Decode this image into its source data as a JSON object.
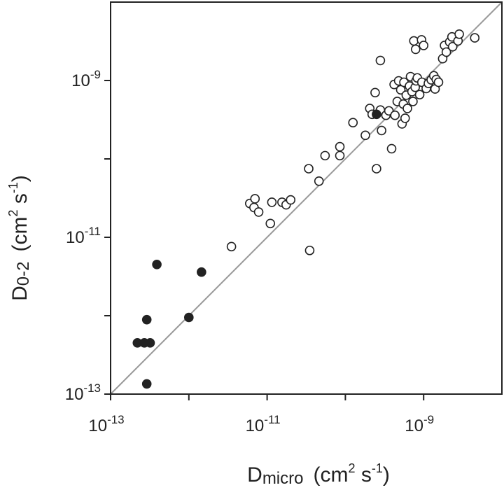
{
  "chart_data": {
    "type": "scatter",
    "title": "",
    "x_scale": "log",
    "y_scale": "log",
    "xlim": [
      1e-13,
      1e-08
    ],
    "ylim": [
      1e-13,
      1e-08
    ],
    "grid": false,
    "legend": "none",
    "reference_line": {
      "type": "1:1",
      "color": "#999999"
    },
    "x_ticks": [
      {
        "value": 1e-13,
        "base": "10",
        "exp": "-13"
      },
      {
        "value": 1e-11,
        "base": "10",
        "exp": "-11"
      },
      {
        "value": 1e-09,
        "base": "10",
        "exp": "-9"
      }
    ],
    "y_ticks": [
      {
        "value": 1e-13,
        "base": "10",
        "exp": "-13"
      },
      {
        "value": 1e-11,
        "base": "10",
        "exp": "-11"
      },
      {
        "value": 1e-09,
        "base": "10",
        "exp": "-9"
      }
    ],
    "x_minor_ticks": [
      1e-12,
      1e-10
    ],
    "y_minor_ticks": [
      1e-12,
      1e-10
    ],
    "xlabel": {
      "main": "D",
      "sub": "micro",
      "units_pre": "(cm",
      "units_exp1": "2",
      "units_mid": " s",
      "units_exp2": "-1",
      "units_post": ")"
    },
    "ylabel": {
      "main": "D",
      "sub": "0-2",
      "units_pre": "(cm",
      "units_exp1": "2",
      "units_mid": " s",
      "units_exp2": "-1",
      "units_post": ")"
    },
    "series": [
      {
        "style": "filled",
        "color": "#222222",
        "points": [
          [
            2.9e-13,
            8.9e-13
          ],
          [
            2.2e-13,
            4.5e-13
          ],
          [
            2.7e-13,
            4.5e-13
          ],
          [
            3.2e-13,
            4.5e-13
          ],
          [
            2.9e-13,
            1.35e-13
          ],
          [
            3.9e-13,
            4.5e-12
          ],
          [
            1e-12,
            9.5e-13
          ],
          [
            1.45e-12,
            3.6e-12
          ],
          [
            2.5e-10,
            3.7e-10
          ]
        ]
      },
      {
        "style": "open",
        "color": "#222222",
        "points": [
          [
            3.5e-12,
            7.6e-12
          ],
          [
            6e-12,
            2.7e-11
          ],
          [
            7e-12,
            3.1e-11
          ],
          [
            6.8e-12,
            2.4e-11
          ],
          [
            7.8e-12,
            2.1e-11
          ],
          [
            1.1e-11,
            1.5e-11
          ],
          [
            1.15e-11,
            2.8e-11
          ],
          [
            1.55e-11,
            2.8e-11
          ],
          [
            1.75e-11,
            2.6e-11
          ],
          [
            2e-11,
            3e-11
          ],
          [
            3.5e-11,
            6.8e-12
          ],
          [
            3.4e-11,
            7.5e-11
          ],
          [
            4.6e-11,
            5.2e-11
          ],
          [
            5.5e-11,
            1.1e-10
          ],
          [
            8.5e-11,
            1.1e-10
          ],
          [
            8.5e-11,
            1.43e-10
          ],
          [
            1.25e-10,
            2.9e-10
          ],
          [
            1.8e-10,
            2e-10
          ],
          [
            2.05e-10,
            4.4e-10
          ],
          [
            2.2e-10,
            3.7e-10
          ],
          [
            2.4e-10,
            7e-10
          ],
          [
            2.8e-10,
            4.2e-10
          ],
          [
            2.9e-10,
            2.3e-10
          ],
          [
            2.8e-10,
            1.8e-09
          ],
          [
            2.5e-10,
            7.5e-11
          ],
          [
            3.3e-10,
            3.6e-10
          ],
          [
            3.6e-10,
            4.1e-10
          ],
          [
            3.9e-10,
            1.35e-10
          ],
          [
            4.3e-10,
            3.6e-10
          ],
          [
            4.6e-10,
            5.4e-10
          ],
          [
            4.2e-10,
            8.9e-10
          ],
          [
            4.8e-10,
            9.9e-10
          ],
          [
            5.1e-10,
            7.6e-10
          ],
          [
            5.3e-10,
            2.8e-10
          ],
          [
            5.5e-10,
            5e-10
          ],
          [
            5.6e-10,
            9.5e-10
          ],
          [
            5.8e-10,
            3.3e-10
          ],
          [
            6e-10,
            6.5e-10
          ],
          [
            6.2e-10,
            4.4e-10
          ],
          [
            6.6e-10,
            8.5e-10
          ],
          [
            6.8e-10,
            1.12e-09
          ],
          [
            7.1e-10,
            7.2e-10
          ],
          [
            7.3e-10,
            5.4e-10
          ],
          [
            7.8e-10,
            8.2e-10
          ],
          [
            8e-10,
            9.9e-10
          ],
          [
            8.3e-10,
            1.08e-09
          ],
          [
            7.5e-10,
            3.2e-09
          ],
          [
            7.9e-10,
            2.5e-09
          ],
          [
            8.9e-10,
            6.6e-10
          ],
          [
            9.5e-10,
            9.5e-10
          ],
          [
            9.4e-10,
            3.3e-09
          ],
          [
            1e-09,
            2.8e-09
          ],
          [
            1.08e-09,
            7.9e-10
          ],
          [
            1.15e-09,
            9.2e-10
          ],
          [
            1.25e-09,
            1.02e-09
          ],
          [
            1.35e-09,
            1.15e-09
          ],
          [
            1.45e-09,
            1.03e-09
          ],
          [
            1.4e-09,
            7.8e-10
          ],
          [
            1.55e-09,
            9.5e-10
          ],
          [
            1.75e-09,
            1.9e-09
          ],
          [
            1.85e-09,
            2.8e-09
          ],
          [
            1.95e-09,
            2.3e-09
          ],
          [
            2.15e-09,
            3.1e-09
          ],
          [
            2.3e-09,
            3.6e-09
          ],
          [
            2.35e-09,
            2.7e-09
          ],
          [
            2.75e-09,
            3.2e-09
          ],
          [
            2.85e-09,
            3.9e-09
          ],
          [
            4.5e-09,
            3.5e-09
          ]
        ]
      }
    ]
  }
}
